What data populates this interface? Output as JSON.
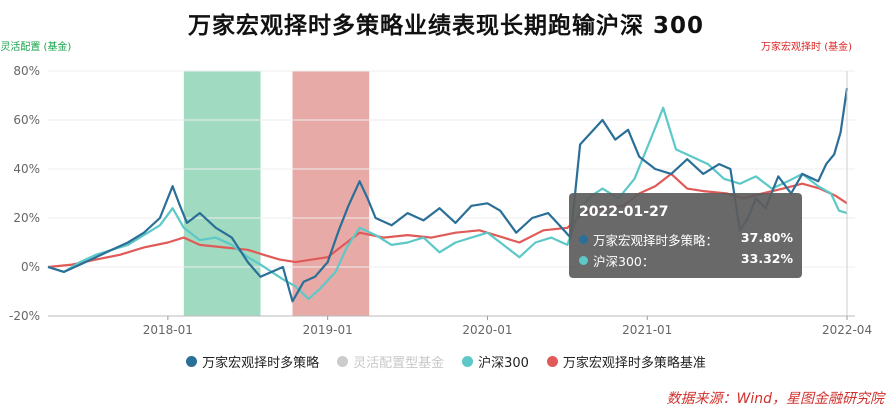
{
  "title": "万家宏观择时多策略业绩表现长期跑输沪深 300",
  "tag_left": "· 灵活配置 (基金)",
  "tag_right": "万家宏观择时 (基金)",
  "source": "数据来源：Wind，星图金融研究院",
  "tooltip": {
    "date": "2022-01-27",
    "rows": [
      {
        "label": "万家宏观择时多策略：",
        "value": "37.80%"
      },
      {
        "label": "沪深300：",
        "value": "33.32%"
      }
    ]
  },
  "legend": [
    {
      "label": "万家宏观择时多策略",
      "muted": false
    },
    {
      "label": "灵活配置型基金",
      "muted": true
    },
    {
      "label": "沪深300",
      "muted": false
    },
    {
      "label": "万家宏观择时多策略基准",
      "muted": false
    }
  ],
  "colors": {
    "fund": "#2a6f97",
    "flex": "#cccccc",
    "hs300": "#5cc8c8",
    "bench": "#e05a58",
    "green_band": "#8fd3b6",
    "red_band": "#e39b98"
  },
  "chart_data": {
    "type": "line",
    "title": "万家宏观择时多策略业绩表现长期跑输沪深 300",
    "x_range": [
      2017.25,
      2022.3
    ],
    "ylim": [
      -20,
      80
    ],
    "yticks": [
      -20,
      0,
      20,
      40,
      60,
      80
    ],
    "ytick_labels": [
      "-20%",
      "0%",
      "20%",
      "40%",
      "60%",
      "80%"
    ],
    "xticks": [
      {
        "t": 2018.0,
        "label": "2018-01"
      },
      {
        "t": 2019.0,
        "label": "2019-01"
      },
      {
        "t": 2020.0,
        "label": "2020-01"
      },
      {
        "t": 2021.0,
        "label": "2021-01"
      },
      {
        "t": 2022.25,
        "label": "2022-04"
      }
    ],
    "bands": [
      {
        "from": 2018.1,
        "to": 2018.58,
        "color": "green"
      },
      {
        "from": 2018.78,
        "to": 2019.26,
        "color": "red"
      }
    ],
    "series": [
      {
        "name": "万家宏观择时多策略",
        "key": "fund",
        "points": [
          [
            2017.25,
            0
          ],
          [
            2017.35,
            -2
          ],
          [
            2017.45,
            1
          ],
          [
            2017.55,
            4
          ],
          [
            2017.65,
            7
          ],
          [
            2017.75,
            10
          ],
          [
            2017.85,
            14
          ],
          [
            2017.95,
            20
          ],
          [
            2018.03,
            33
          ],
          [
            2018.07,
            26
          ],
          [
            2018.12,
            18
          ],
          [
            2018.2,
            22
          ],
          [
            2018.3,
            16
          ],
          [
            2018.4,
            12
          ],
          [
            2018.5,
            2
          ],
          [
            2018.58,
            -4
          ],
          [
            2018.65,
            -2
          ],
          [
            2018.72,
            0
          ],
          [
            2018.78,
            -14
          ],
          [
            2018.85,
            -6
          ],
          [
            2018.92,
            -4
          ],
          [
            2019.0,
            2
          ],
          [
            2019.07,
            15
          ],
          [
            2019.13,
            25
          ],
          [
            2019.2,
            35
          ],
          [
            2019.25,
            28
          ],
          [
            2019.3,
            20
          ],
          [
            2019.4,
            17
          ],
          [
            2019.5,
            22
          ],
          [
            2019.6,
            19
          ],
          [
            2019.7,
            24
          ],
          [
            2019.8,
            18
          ],
          [
            2019.9,
            25
          ],
          [
            2020.0,
            26
          ],
          [
            2020.08,
            23
          ],
          [
            2020.18,
            14
          ],
          [
            2020.28,
            20
          ],
          [
            2020.38,
            22
          ],
          [
            2020.45,
            17
          ],
          [
            2020.52,
            12
          ],
          [
            2020.58,
            50
          ],
          [
            2020.65,
            55
          ],
          [
            2020.72,
            60
          ],
          [
            2020.8,
            52
          ],
          [
            2020.88,
            56
          ],
          [
            2020.95,
            45
          ],
          [
            2021.05,
            40
          ],
          [
            2021.15,
            38
          ],
          [
            2021.25,
            44
          ],
          [
            2021.35,
            38
          ],
          [
            2021.45,
            42
          ],
          [
            2021.52,
            40
          ],
          [
            2021.58,
            15
          ],
          [
            2021.63,
            20
          ],
          [
            2021.68,
            28
          ],
          [
            2021.74,
            24
          ],
          [
            2021.82,
            37
          ],
          [
            2021.9,
            30
          ],
          [
            2021.97,
            38
          ],
          [
            2022.07,
            35
          ],
          [
            2022.12,
            42
          ],
          [
            2022.17,
            46
          ],
          [
            2022.21,
            55
          ],
          [
            2022.25,
            73
          ]
        ]
      },
      {
        "name": "沪深300",
        "key": "hs300",
        "points": [
          [
            2017.25,
            0
          ],
          [
            2017.35,
            -2
          ],
          [
            2017.45,
            2
          ],
          [
            2017.55,
            5
          ],
          [
            2017.65,
            7
          ],
          [
            2017.75,
            9
          ],
          [
            2017.85,
            13
          ],
          [
            2017.95,
            17
          ],
          [
            2018.03,
            24
          ],
          [
            2018.1,
            16
          ],
          [
            2018.2,
            11
          ],
          [
            2018.3,
            12
          ],
          [
            2018.4,
            9
          ],
          [
            2018.5,
            4
          ],
          [
            2018.58,
            1
          ],
          [
            2018.65,
            -2
          ],
          [
            2018.72,
            -5
          ],
          [
            2018.8,
            -8
          ],
          [
            2018.88,
            -13
          ],
          [
            2018.95,
            -9
          ],
          [
            2019.05,
            -2
          ],
          [
            2019.12,
            8
          ],
          [
            2019.2,
            16
          ],
          [
            2019.3,
            13
          ],
          [
            2019.4,
            9
          ],
          [
            2019.5,
            10
          ],
          [
            2019.6,
            12
          ],
          [
            2019.7,
            6
          ],
          [
            2019.8,
            10
          ],
          [
            2019.9,
            12
          ],
          [
            2020.0,
            14
          ],
          [
            2020.1,
            9
          ],
          [
            2020.2,
            4
          ],
          [
            2020.3,
            10
          ],
          [
            2020.4,
            12
          ],
          [
            2020.5,
            9
          ],
          [
            2020.58,
            24
          ],
          [
            2020.65,
            29
          ],
          [
            2020.72,
            32
          ],
          [
            2020.82,
            28
          ],
          [
            2020.92,
            36
          ],
          [
            2021.02,
            52
          ],
          [
            2021.1,
            65
          ],
          [
            2021.18,
            48
          ],
          [
            2021.28,
            45
          ],
          [
            2021.38,
            42
          ],
          [
            2021.48,
            36
          ],
          [
            2021.58,
            34
          ],
          [
            2021.68,
            37
          ],
          [
            2021.78,
            32
          ],
          [
            2021.88,
            35
          ],
          [
            2021.97,
            38
          ],
          [
            2022.07,
            33
          ],
          [
            2022.15,
            30
          ],
          [
            2022.2,
            23
          ],
          [
            2022.25,
            22
          ]
        ]
      },
      {
        "name": "万家宏观择时多策略基准",
        "key": "bench",
        "points": [
          [
            2017.25,
            0
          ],
          [
            2017.4,
            1
          ],
          [
            2017.55,
            3
          ],
          [
            2017.7,
            5
          ],
          [
            2017.85,
            8
          ],
          [
            2018.0,
            10
          ],
          [
            2018.1,
            12
          ],
          [
            2018.2,
            9
          ],
          [
            2018.35,
            8
          ],
          [
            2018.5,
            7
          ],
          [
            2018.6,
            5
          ],
          [
            2018.7,
            3
          ],
          [
            2018.8,
            2
          ],
          [
            2018.9,
            3
          ],
          [
            2019.0,
            4
          ],
          [
            2019.1,
            9
          ],
          [
            2019.2,
            14
          ],
          [
            2019.35,
            12
          ],
          [
            2019.5,
            13
          ],
          [
            2019.65,
            12
          ],
          [
            2019.8,
            14
          ],
          [
            2019.95,
            15
          ],
          [
            2020.1,
            12
          ],
          [
            2020.2,
            10
          ],
          [
            2020.35,
            15
          ],
          [
            2020.5,
            16
          ],
          [
            2020.6,
            22
          ],
          [
            2020.72,
            24
          ],
          [
            2020.85,
            25
          ],
          [
            2020.95,
            30
          ],
          [
            2021.05,
            33
          ],
          [
            2021.15,
            38
          ],
          [
            2021.25,
            32
          ],
          [
            2021.35,
            31
          ],
          [
            2021.5,
            30
          ],
          [
            2021.6,
            28
          ],
          [
            2021.72,
            30
          ],
          [
            2021.85,
            32
          ],
          [
            2021.97,
            34
          ],
          [
            2022.08,
            32
          ],
          [
            2022.18,
            29
          ],
          [
            2022.25,
            26
          ]
        ]
      }
    ]
  }
}
